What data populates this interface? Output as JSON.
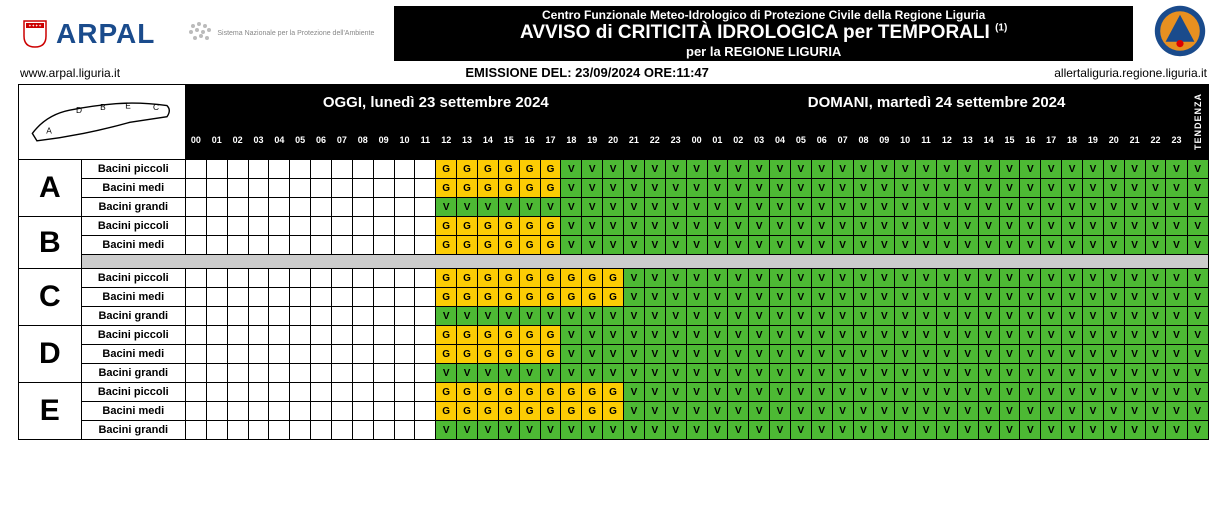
{
  "header": {
    "arpal_brand": "ARPAL",
    "sistema_text": "Sistema Nazionale per la Protezione dell'Ambiente",
    "title_line1": "Centro Funzionale Meteo-Idrologico di Protezione Civile della Regione Liguria",
    "title_line2": "AVVISO di CRITICITÀ IDROLOGICA per TEMPORALI",
    "title_sup": "(1)",
    "title_line3": "per la REGIONE LIGURIA",
    "url_left": "www.arpal.liguria.it",
    "emission": "EMISSIONE DEL: 23/09/2024 ORE:11:47",
    "url_right": "allertaliguria.regione.liguria.it"
  },
  "days": {
    "today": "OGGI, lunedì 23 settembre 2024",
    "tomorrow": "DOMANI, martedì 24 settembre 2024",
    "tendenza": "TENDENZA"
  },
  "hours_today": [
    "00",
    "01",
    "02",
    "03",
    "04",
    "05",
    "06",
    "07",
    "08",
    "09",
    "10",
    "11",
    "12",
    "13",
    "14",
    "15",
    "16",
    "17",
    "18",
    "19",
    "20",
    "21",
    "22",
    "23"
  ],
  "hours_tomorrow": [
    "00",
    "01",
    "02",
    "03",
    "04",
    "05",
    "06",
    "07",
    "08",
    "09",
    "10",
    "11",
    "12",
    "13",
    "14",
    "15",
    "16",
    "17",
    "18",
    "19",
    "20",
    "21",
    "22",
    "23"
  ],
  "zones": [
    {
      "id": "A",
      "basins": [
        {
          "name": "Bacini piccoli",
          "vals": [
            "",
            "",
            "",
            "",
            "",
            "",
            "",
            "",
            "",
            "",
            "",
            "",
            "G",
            "G",
            "G",
            "G",
            "G",
            "G",
            "V",
            "V",
            "V",
            "V",
            "V",
            "V",
            "V",
            "V",
            "V",
            "V",
            "V",
            "V",
            "V",
            "V",
            "V",
            "V",
            "V",
            "V",
            "V",
            "V",
            "V",
            "V",
            "V",
            "V",
            "V",
            "V",
            "V",
            "V",
            "V",
            "V"
          ],
          "tend": "V"
        },
        {
          "name": "Bacini medi",
          "vals": [
            "",
            "",
            "",
            "",
            "",
            "",
            "",
            "",
            "",
            "",
            "",
            "",
            "G",
            "G",
            "G",
            "G",
            "G",
            "G",
            "V",
            "V",
            "V",
            "V",
            "V",
            "V",
            "V",
            "V",
            "V",
            "V",
            "V",
            "V",
            "V",
            "V",
            "V",
            "V",
            "V",
            "V",
            "V",
            "V",
            "V",
            "V",
            "V",
            "V",
            "V",
            "V",
            "V",
            "V",
            "V",
            "V"
          ],
          "tend": "V"
        },
        {
          "name": "Bacini grandi",
          "vals": [
            "",
            "",
            "",
            "",
            "",
            "",
            "",
            "",
            "",
            "",
            "",
            "",
            "V",
            "V",
            "V",
            "V",
            "V",
            "V",
            "V",
            "V",
            "V",
            "V",
            "V",
            "V",
            "V",
            "V",
            "V",
            "V",
            "V",
            "V",
            "V",
            "V",
            "V",
            "V",
            "V",
            "V",
            "V",
            "V",
            "V",
            "V",
            "V",
            "V",
            "V",
            "V",
            "V",
            "V",
            "V",
            "V"
          ],
          "tend": "V"
        }
      ]
    },
    {
      "id": "B",
      "basins": [
        {
          "name": "Bacini piccoli",
          "vals": [
            "",
            "",
            "",
            "",
            "",
            "",
            "",
            "",
            "",
            "",
            "",
            "",
            "G",
            "G",
            "G",
            "G",
            "G",
            "G",
            "V",
            "V",
            "V",
            "V",
            "V",
            "V",
            "V",
            "V",
            "V",
            "V",
            "V",
            "V",
            "V",
            "V",
            "V",
            "V",
            "V",
            "V",
            "V",
            "V",
            "V",
            "V",
            "V",
            "V",
            "V",
            "V",
            "V",
            "V",
            "V",
            "V"
          ],
          "tend": "V"
        },
        {
          "name": "Bacini medi",
          "vals": [
            "",
            "",
            "",
            "",
            "",
            "",
            "",
            "",
            "",
            "",
            "",
            "",
            "G",
            "G",
            "G",
            "G",
            "G",
            "G",
            "V",
            "V",
            "V",
            "V",
            "V",
            "V",
            "V",
            "V",
            "V",
            "V",
            "V",
            "V",
            "V",
            "V",
            "V",
            "V",
            "V",
            "V",
            "V",
            "V",
            "V",
            "V",
            "V",
            "V",
            "V",
            "V",
            "V",
            "V",
            "V",
            "V"
          ],
          "tend": "V"
        }
      ],
      "spacer_after": true
    },
    {
      "id": "C",
      "basins": [
        {
          "name": "Bacini piccoli",
          "vals": [
            "",
            "",
            "",
            "",
            "",
            "",
            "",
            "",
            "",
            "",
            "",
            "",
            "G",
            "G",
            "G",
            "G",
            "G",
            "G",
            "G",
            "G",
            "G",
            "V",
            "V",
            "V",
            "V",
            "V",
            "V",
            "V",
            "V",
            "V",
            "V",
            "V",
            "V",
            "V",
            "V",
            "V",
            "V",
            "V",
            "V",
            "V",
            "V",
            "V",
            "V",
            "V",
            "V",
            "V",
            "V",
            "V"
          ],
          "tend": "V"
        },
        {
          "name": "Bacini medi",
          "vals": [
            "",
            "",
            "",
            "",
            "",
            "",
            "",
            "",
            "",
            "",
            "",
            "",
            "G",
            "G",
            "G",
            "G",
            "G",
            "G",
            "G",
            "G",
            "G",
            "V",
            "V",
            "V",
            "V",
            "V",
            "V",
            "V",
            "V",
            "V",
            "V",
            "V",
            "V",
            "V",
            "V",
            "V",
            "V",
            "V",
            "V",
            "V",
            "V",
            "V",
            "V",
            "V",
            "V",
            "V",
            "V",
            "V"
          ],
          "tend": "V"
        },
        {
          "name": "Bacini grandi",
          "vals": [
            "",
            "",
            "",
            "",
            "",
            "",
            "",
            "",
            "",
            "",
            "",
            "",
            "V",
            "V",
            "V",
            "V",
            "V",
            "V",
            "V",
            "V",
            "V",
            "V",
            "V",
            "V",
            "V",
            "V",
            "V",
            "V",
            "V",
            "V",
            "V",
            "V",
            "V",
            "V",
            "V",
            "V",
            "V",
            "V",
            "V",
            "V",
            "V",
            "V",
            "V",
            "V",
            "V",
            "V",
            "V",
            "V"
          ],
          "tend": "V"
        }
      ]
    },
    {
      "id": "D",
      "basins": [
        {
          "name": "Bacini piccoli",
          "vals": [
            "",
            "",
            "",
            "",
            "",
            "",
            "",
            "",
            "",
            "",
            "",
            "",
            "G",
            "G",
            "G",
            "G",
            "G",
            "G",
            "V",
            "V",
            "V",
            "V",
            "V",
            "V",
            "V",
            "V",
            "V",
            "V",
            "V",
            "V",
            "V",
            "V",
            "V",
            "V",
            "V",
            "V",
            "V",
            "V",
            "V",
            "V",
            "V",
            "V",
            "V",
            "V",
            "V",
            "V",
            "V",
            "V"
          ],
          "tend": "V"
        },
        {
          "name": "Bacini medi",
          "vals": [
            "",
            "",
            "",
            "",
            "",
            "",
            "",
            "",
            "",
            "",
            "",
            "",
            "G",
            "G",
            "G",
            "G",
            "G",
            "G",
            "V",
            "V",
            "V",
            "V",
            "V",
            "V",
            "V",
            "V",
            "V",
            "V",
            "V",
            "V",
            "V",
            "V",
            "V",
            "V",
            "V",
            "V",
            "V",
            "V",
            "V",
            "V",
            "V",
            "V",
            "V",
            "V",
            "V",
            "V",
            "V",
            "V"
          ],
          "tend": "V"
        },
        {
          "name": "Bacini grandi",
          "vals": [
            "",
            "",
            "",
            "",
            "",
            "",
            "",
            "",
            "",
            "",
            "",
            "",
            "V",
            "V",
            "V",
            "V",
            "V",
            "V",
            "V",
            "V",
            "V",
            "V",
            "V",
            "V",
            "V",
            "V",
            "V",
            "V",
            "V",
            "V",
            "V",
            "V",
            "V",
            "V",
            "V",
            "V",
            "V",
            "V",
            "V",
            "V",
            "V",
            "V",
            "V",
            "V",
            "V",
            "V",
            "V",
            "V"
          ],
          "tend": "V"
        }
      ]
    },
    {
      "id": "E",
      "basins": [
        {
          "name": "Bacini piccoli",
          "vals": [
            "",
            "",
            "",
            "",
            "",
            "",
            "",
            "",
            "",
            "",
            "",
            "",
            "G",
            "G",
            "G",
            "G",
            "G",
            "G",
            "G",
            "G",
            "G",
            "V",
            "V",
            "V",
            "V",
            "V",
            "V",
            "V",
            "V",
            "V",
            "V",
            "V",
            "V",
            "V",
            "V",
            "V",
            "V",
            "V",
            "V",
            "V",
            "V",
            "V",
            "V",
            "V",
            "V",
            "V",
            "V",
            "V"
          ],
          "tend": "V"
        },
        {
          "name": "Bacini medi",
          "vals": [
            "",
            "",
            "",
            "",
            "",
            "",
            "",
            "",
            "",
            "",
            "",
            "",
            "G",
            "G",
            "G",
            "G",
            "G",
            "G",
            "G",
            "G",
            "G",
            "V",
            "V",
            "V",
            "V",
            "V",
            "V",
            "V",
            "V",
            "V",
            "V",
            "V",
            "V",
            "V",
            "V",
            "V",
            "V",
            "V",
            "V",
            "V",
            "V",
            "V",
            "V",
            "V",
            "V",
            "V",
            "V",
            "V"
          ],
          "tend": "V"
        },
        {
          "name": "Bacini grandi",
          "vals": [
            "",
            "",
            "",
            "",
            "",
            "",
            "",
            "",
            "",
            "",
            "",
            "",
            "V",
            "V",
            "V",
            "V",
            "V",
            "V",
            "V",
            "V",
            "V",
            "V",
            "V",
            "V",
            "V",
            "V",
            "V",
            "V",
            "V",
            "V",
            "V",
            "V",
            "V",
            "V",
            "V",
            "V",
            "V",
            "V",
            "V",
            "V",
            "V",
            "V",
            "V",
            "V",
            "V",
            "V",
            "V",
            "V"
          ],
          "tend": "V"
        }
      ]
    }
  ],
  "colors": {
    "G": "#fccc04",
    "V": "#4db934",
    "header_bg": "#000000",
    "header_fg": "#ffffff"
  }
}
